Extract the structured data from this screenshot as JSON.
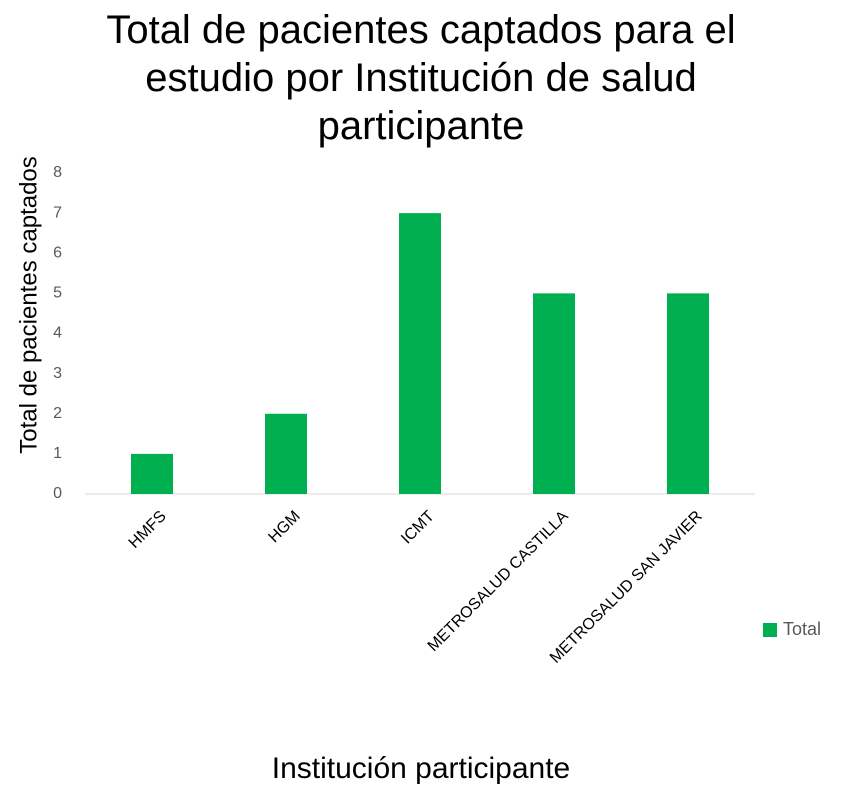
{
  "chart_data": {
    "type": "bar",
    "title": "Total de pacientes captados para el estudio por Institución de salud participante",
    "x_label": "Institución participante",
    "y_label": "Total de pacientes captados",
    "categories": [
      "HMFS",
      "HGM",
      "ICMT",
      "METROSALUD CASTILLA",
      "METROSALUD SAN JAVIER"
    ],
    "series": [
      {
        "name": "Total",
        "color": "#00b050",
        "values": [
          1,
          2,
          7,
          5,
          5
        ]
      }
    ],
    "ylim": [
      0,
      8
    ],
    "yticks": [
      0,
      1,
      2,
      3,
      4,
      5,
      6,
      7,
      8
    ],
    "grid": false,
    "legend": "right"
  }
}
